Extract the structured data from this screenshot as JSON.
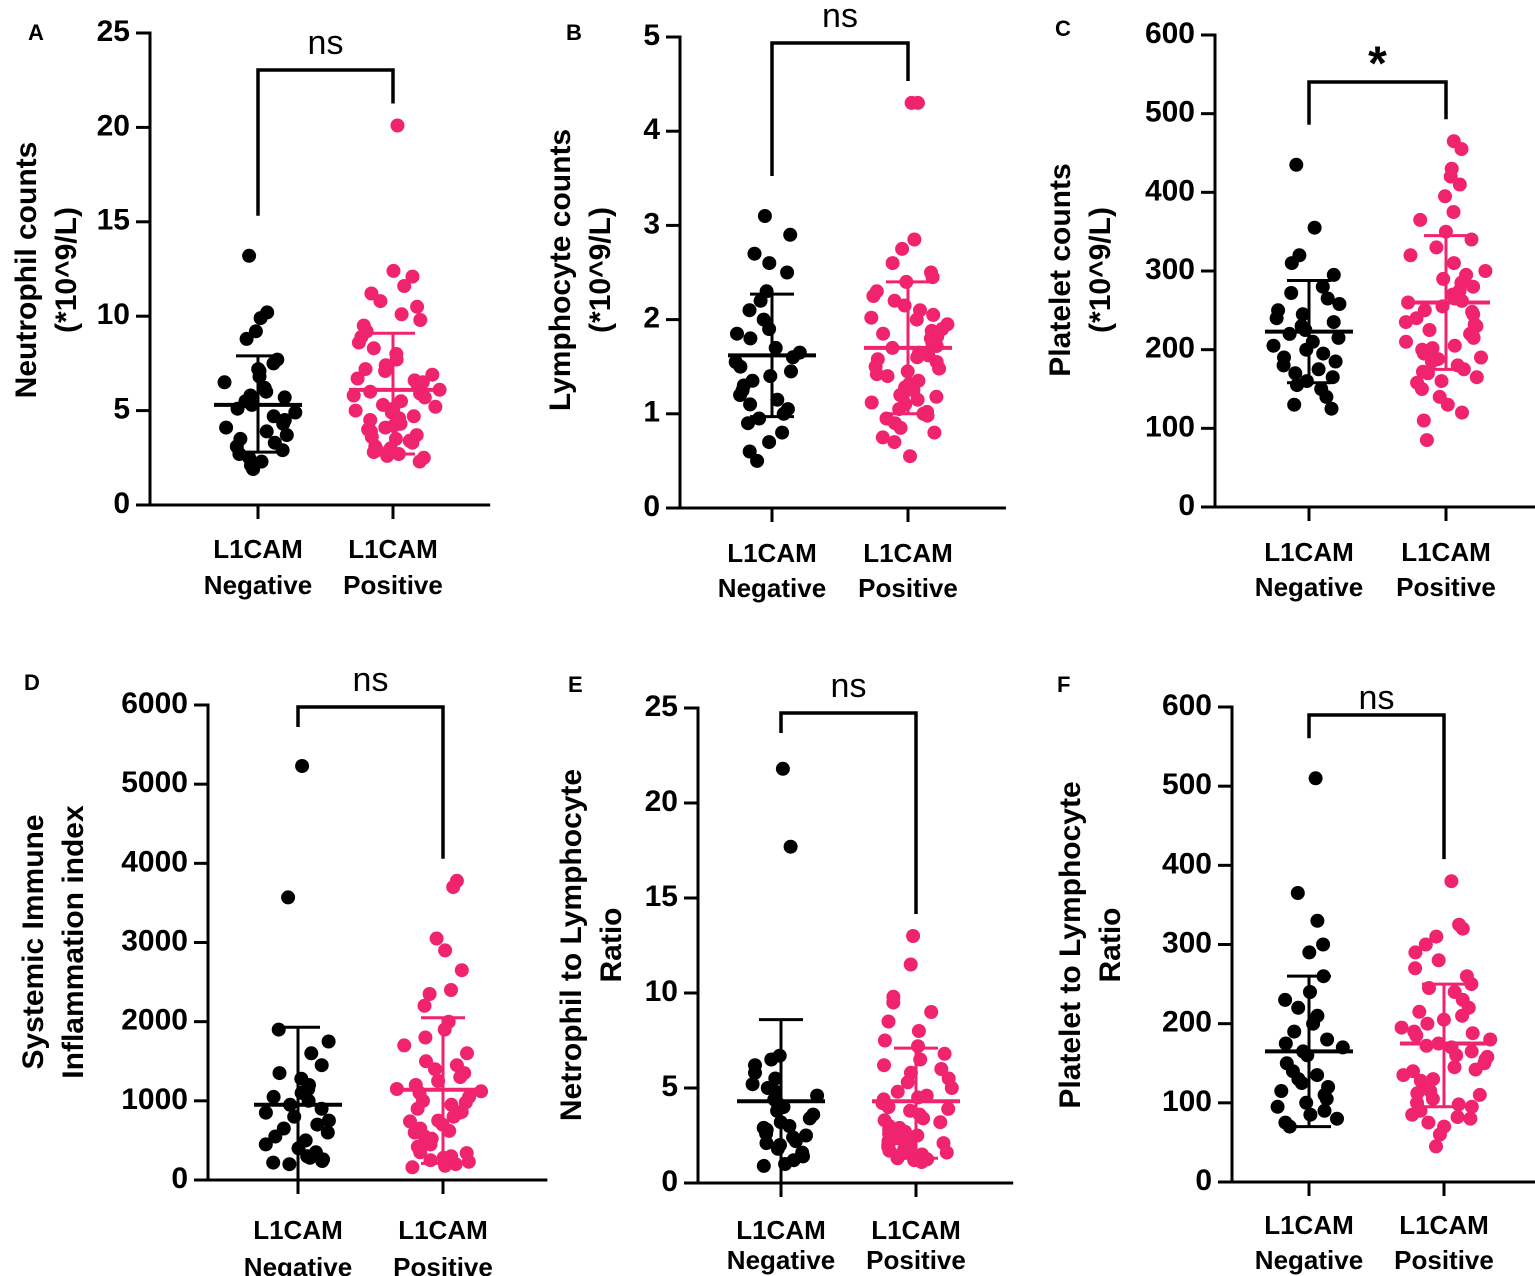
{
  "colors": {
    "negative": "#000000",
    "positive": "#f0236f",
    "axis": "#000000"
  },
  "chart_data": [
    {
      "type": "scatter",
      "panel": "A",
      "ylabel_lines": [
        "Neutrophil counts",
        "(*10^9/L)"
      ],
      "ylim": [
        0,
        25
      ],
      "yticks": [
        0,
        5,
        10,
        15,
        20,
        25
      ],
      "categories": [
        {
          "lines": [
            "L1CAM",
            "Negative"
          ]
        },
        {
          "lines": [
            "L1CAM",
            "Positive"
          ]
        }
      ],
      "significance": "ns",
      "series": [
        {
          "name": "L1CAM Negative",
          "mean": 5.3,
          "sd_low": 2.8,
          "sd_high": 7.9,
          "values": [
            13.2,
            10.2,
            9.9,
            9.2,
            8.8,
            7.7,
            7.5,
            7.2,
            7.1,
            6.8,
            6.5,
            6.2,
            6.0,
            5.8,
            5.7,
            5.5,
            5.3,
            5.1,
            4.9,
            4.7,
            4.5,
            4.3,
            4.1,
            3.9,
            3.7,
            3.5,
            3.3,
            3.1,
            2.9,
            2.7,
            2.5,
            2.3,
            2.1,
            1.9
          ]
        },
        {
          "name": "L1CAM Positive",
          "mean": 6.1,
          "sd_low": 2.7,
          "sd_high": 9.1,
          "values": [
            20.1,
            12.4,
            12.1,
            11.6,
            11.2,
            10.8,
            10.5,
            10.1,
            9.8,
            9.5,
            9.2,
            8.9,
            8.6,
            8.3,
            8.0,
            7.7,
            7.4,
            7.1,
            6.9,
            6.7,
            6.5,
            6.3,
            6.1,
            5.9,
            5.7,
            5.5,
            5.3,
            5.1,
            4.9,
            4.7,
            4.5,
            4.3,
            4.1,
            3.9,
            3.7,
            3.5,
            3.3,
            3.1,
            2.9,
            2.7,
            2.5,
            2.3,
            6.6,
            5.8,
            5.2,
            4.6,
            4.0,
            3.4,
            2.8,
            7.2,
            6.0,
            5.0,
            4.2,
            3.6,
            3.0,
            2.6
          ]
        }
      ]
    },
    {
      "type": "scatter",
      "panel": "B",
      "ylabel_lines": [
        "Lymphocyte counts",
        "(*10^9/L)"
      ],
      "ylim": [
        0,
        5
      ],
      "yticks": [
        0,
        1,
        2,
        3,
        4,
        5
      ],
      "categories": [
        {
          "lines": [
            "L1CAM",
            "Negative"
          ]
        },
        {
          "lines": [
            "L1CAM",
            "Positive"
          ]
        }
      ],
      "significance": "ns",
      "series": [
        {
          "name": "L1CAM Negative",
          "mean": 1.62,
          "sd_low": 0.97,
          "sd_high": 2.27,
          "values": [
            3.1,
            2.9,
            2.7,
            2.6,
            2.5,
            2.3,
            2.2,
            2.1,
            2.0,
            1.9,
            1.85,
            1.8,
            1.7,
            1.65,
            1.6,
            1.55,
            1.5,
            1.45,
            1.4,
            1.35,
            1.3,
            1.25,
            1.2,
            1.15,
            1.1,
            1.05,
            1.0,
            0.95,
            0.9,
            0.8,
            0.7,
            0.6,
            0.5
          ]
        },
        {
          "name": "L1CAM Positive",
          "mean": 1.7,
          "sd_low": 1.0,
          "sd_high": 2.4,
          "values": [
            4.3,
            4.3,
            2.85,
            2.75,
            2.6,
            2.5,
            2.45,
            2.4,
            2.3,
            2.25,
            2.2,
            2.15,
            2.1,
            2.05,
            2.0,
            1.95,
            1.9,
            1.85,
            1.8,
            1.75,
            1.7,
            1.65,
            1.6,
            1.55,
            1.5,
            1.45,
            1.4,
            1.35,
            1.3,
            1.25,
            1.2,
            1.15,
            1.1,
            1.05,
            1.0,
            0.95,
            0.9,
            0.85,
            0.8,
            0.75,
            0.7,
            0.55,
            1.88,
            1.72,
            1.58,
            1.42,
            1.28,
            1.12,
            0.98,
            2.02,
            1.82,
            1.62,
            1.48,
            1.32,
            1.18,
            1.02
          ]
        }
      ]
    },
    {
      "type": "scatter",
      "panel": "C",
      "ylabel_lines": [
        "Platelet counts",
        "(*10^9/L)"
      ],
      "ylim": [
        0,
        600
      ],
      "yticks": [
        0,
        100,
        200,
        300,
        400,
        500,
        600
      ],
      "categories": [
        {
          "lines": [
            "L1CAM",
            "Negative"
          ]
        },
        {
          "lines": [
            "L1CAM",
            "Positive"
          ]
        }
      ],
      "significance": "*",
      "series": [
        {
          "name": "L1CAM Negative",
          "mean": 223,
          "sd_low": 158,
          "sd_high": 288,
          "values": [
            435,
            355,
            320,
            310,
            295,
            280,
            272,
            265,
            258,
            250,
            245,
            240,
            235,
            230,
            225,
            220,
            215,
            210,
            205,
            200,
            195,
            190,
            185,
            180,
            175,
            170,
            165,
            160,
            155,
            150,
            140,
            130,
            125
          ]
        },
        {
          "name": "L1CAM Positive",
          "mean": 260,
          "sd_low": 175,
          "sd_high": 345,
          "values": [
            465,
            455,
            430,
            420,
            410,
            395,
            375,
            365,
            350,
            340,
            330,
            320,
            310,
            300,
            295,
            290,
            285,
            280,
            275,
            270,
            265,
            260,
            255,
            250,
            245,
            240,
            235,
            230,
            225,
            220,
            215,
            210,
            205,
            200,
            195,
            190,
            185,
            180,
            175,
            170,
            165,
            160,
            150,
            140,
            130,
            120,
            110,
            85,
            262,
            248,
            232,
            218,
            202,
            188,
            172,
            158
          ]
        }
      ]
    },
    {
      "type": "scatter",
      "panel": "D",
      "ylabel_lines": [
        "Systemic Immune",
        "Inflammation index"
      ],
      "ylim": [
        0,
        6000
      ],
      "yticks": [
        0,
        1000,
        2000,
        3000,
        4000,
        5000,
        6000
      ],
      "categories": [
        {
          "lines": [
            "L1CAM",
            "Negative"
          ]
        },
        {
          "lines": [
            "L1CAM",
            "Positive"
          ]
        }
      ],
      "significance": "ns",
      "series": [
        {
          "name": "L1CAM Negative",
          "mean": 950,
          "sd_low": 0,
          "sd_high": 1930,
          "values": [
            5230,
            3570,
            1900,
            1750,
            1600,
            1450,
            1350,
            1280,
            1200,
            1150,
            1100,
            1050,
            1000,
            950,
            900,
            850,
            800,
            750,
            700,
            650,
            600,
            550,
            500,
            450,
            400,
            350,
            300,
            280,
            260,
            240,
            220,
            200
          ]
        },
        {
          "name": "L1CAM Positive",
          "mean": 1140,
          "sd_low": 210,
          "sd_high": 2050,
          "values": [
            3780,
            3700,
            3050,
            2900,
            2650,
            2400,
            2350,
            2200,
            2000,
            1900,
            1800,
            1700,
            1600,
            1500,
            1450,
            1400,
            1350,
            1300,
            1250,
            1200,
            1150,
            1100,
            1050,
            1000,
            950,
            900,
            850,
            800,
            750,
            700,
            650,
            600,
            550,
            500,
            450,
            400,
            350,
            300,
            250,
            200,
            180,
            160,
            1120,
            980,
            860,
            740,
            620,
            520,
            420,
            340,
            280,
            230
          ]
        }
      ]
    },
    {
      "type": "scatter",
      "panel": "E",
      "ylabel_lines": [
        "Netrophil to Lymphocyte",
        "Ratio"
      ],
      "ylim": [
        0,
        25
      ],
      "yticks": [
        0,
        5,
        10,
        15,
        20,
        25
      ],
      "categories": [
        {
          "lines": [
            "L1CAM",
            "Negative"
          ]
        },
        {
          "lines": [
            "L1CAM",
            "Positive"
          ]
        }
      ],
      "significance": "ns",
      "series": [
        {
          "name": "L1CAM Negative",
          "mean": 4.3,
          "sd_low": 0,
          "sd_high": 8.6,
          "values": [
            21.8,
            17.7,
            6.7,
            6.5,
            6.2,
            5.8,
            5.5,
            5.2,
            5.0,
            4.8,
            4.6,
            4.4,
            4.2,
            4.0,
            3.8,
            3.6,
            3.4,
            3.2,
            3.0,
            2.9,
            2.8,
            2.6,
            2.5,
            2.4,
            2.2,
            2.1,
            2.0,
            1.8,
            1.6,
            1.4,
            1.2,
            1.0,
            0.9
          ]
        },
        {
          "name": "L1CAM Positive",
          "mean": 4.3,
          "sd_low": 1.3,
          "sd_high": 7.1,
          "values": [
            13.0,
            11.5,
            9.8,
            9.5,
            9.0,
            8.5,
            8.0,
            7.5,
            7.2,
            6.8,
            6.5,
            6.2,
            6.0,
            5.8,
            5.5,
            5.3,
            5.0,
            4.8,
            4.6,
            4.4,
            4.2,
            4.0,
            3.8,
            3.6,
            3.4,
            3.2,
            3.0,
            2.9,
            2.8,
            2.7,
            2.6,
            2.5,
            2.4,
            2.3,
            2.2,
            2.1,
            2.0,
            1.9,
            1.8,
            1.7,
            1.6,
            1.5,
            1.4,
            1.3,
            1.2,
            1.1,
            4.5,
            3.9,
            3.3,
            2.75,
            2.35,
            1.95,
            1.55,
            1.25
          ]
        }
      ]
    },
    {
      "type": "scatter",
      "panel": "F",
      "ylabel_lines": [
        "Platelet to Lymphocyte",
        "Ratio"
      ],
      "ylim": [
        0,
        600
      ],
      "yticks": [
        0,
        100,
        200,
        300,
        400,
        500,
        600
      ],
      "categories": [
        {
          "lines": [
            "L1CAM",
            "Negative"
          ]
        },
        {
          "lines": [
            "L1CAM",
            "Positive"
          ]
        }
      ],
      "significance": "ns",
      "series": [
        {
          "name": "L1CAM Negative",
          "mean": 165,
          "sd_low": 70,
          "sd_high": 260,
          "values": [
            510,
            365,
            330,
            300,
            290,
            260,
            240,
            230,
            220,
            210,
            200,
            190,
            180,
            175,
            170,
            165,
            160,
            150,
            140,
            135,
            130,
            125,
            120,
            115,
            110,
            105,
            100,
            95,
            90,
            85,
            80,
            75,
            70
          ]
        },
        {
          "name": "L1CAM Positive",
          "mean": 175,
          "sd_low": 95,
          "sd_high": 250,
          "values": [
            380,
            325,
            320,
            310,
            300,
            290,
            280,
            270,
            260,
            250,
            245,
            240,
            230,
            220,
            215,
            210,
            205,
            200,
            195,
            190,
            185,
            180,
            175,
            170,
            165,
            160,
            155,
            150,
            145,
            140,
            135,
            130,
            125,
            120,
            115,
            110,
            105,
            100,
            95,
            90,
            85,
            80,
            75,
            70,
            60,
            45,
            188,
            172,
            158,
            142,
            128,
            112,
            98,
            82
          ]
        }
      ]
    }
  ]
}
